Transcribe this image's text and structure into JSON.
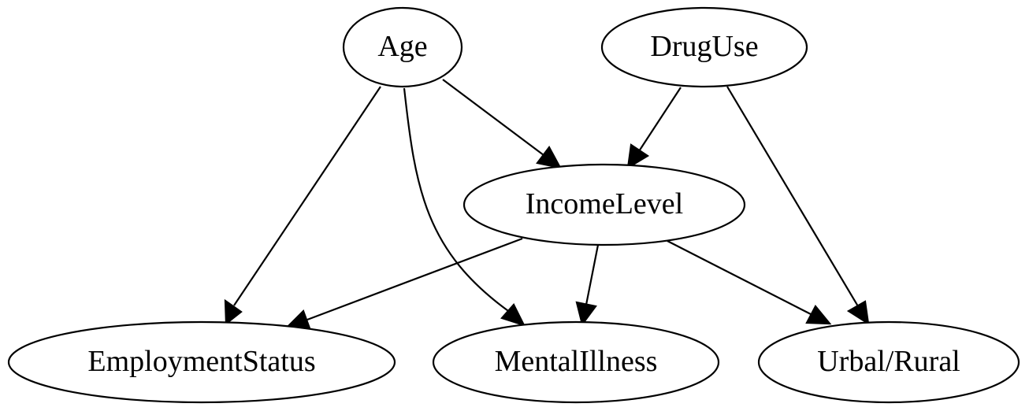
{
  "diagram": {
    "type": "directed-graph",
    "nodes": [
      {
        "id": "age",
        "label": "Age"
      },
      {
        "id": "druguse",
        "label": "DrugUse"
      },
      {
        "id": "income",
        "label": "IncomeLevel"
      },
      {
        "id": "employment",
        "label": "EmploymentStatus"
      },
      {
        "id": "mental",
        "label": "MentalIllness"
      },
      {
        "id": "urban",
        "label": "Urbal/Rural"
      }
    ],
    "edges": [
      {
        "from": "age",
        "to": "employment"
      },
      {
        "from": "age",
        "to": "mental"
      },
      {
        "from": "age",
        "to": "income"
      },
      {
        "from": "druguse",
        "to": "income"
      },
      {
        "from": "druguse",
        "to": "urban"
      },
      {
        "from": "income",
        "to": "employment"
      },
      {
        "from": "income",
        "to": "mental"
      },
      {
        "from": "income",
        "to": "urban"
      }
    ]
  }
}
